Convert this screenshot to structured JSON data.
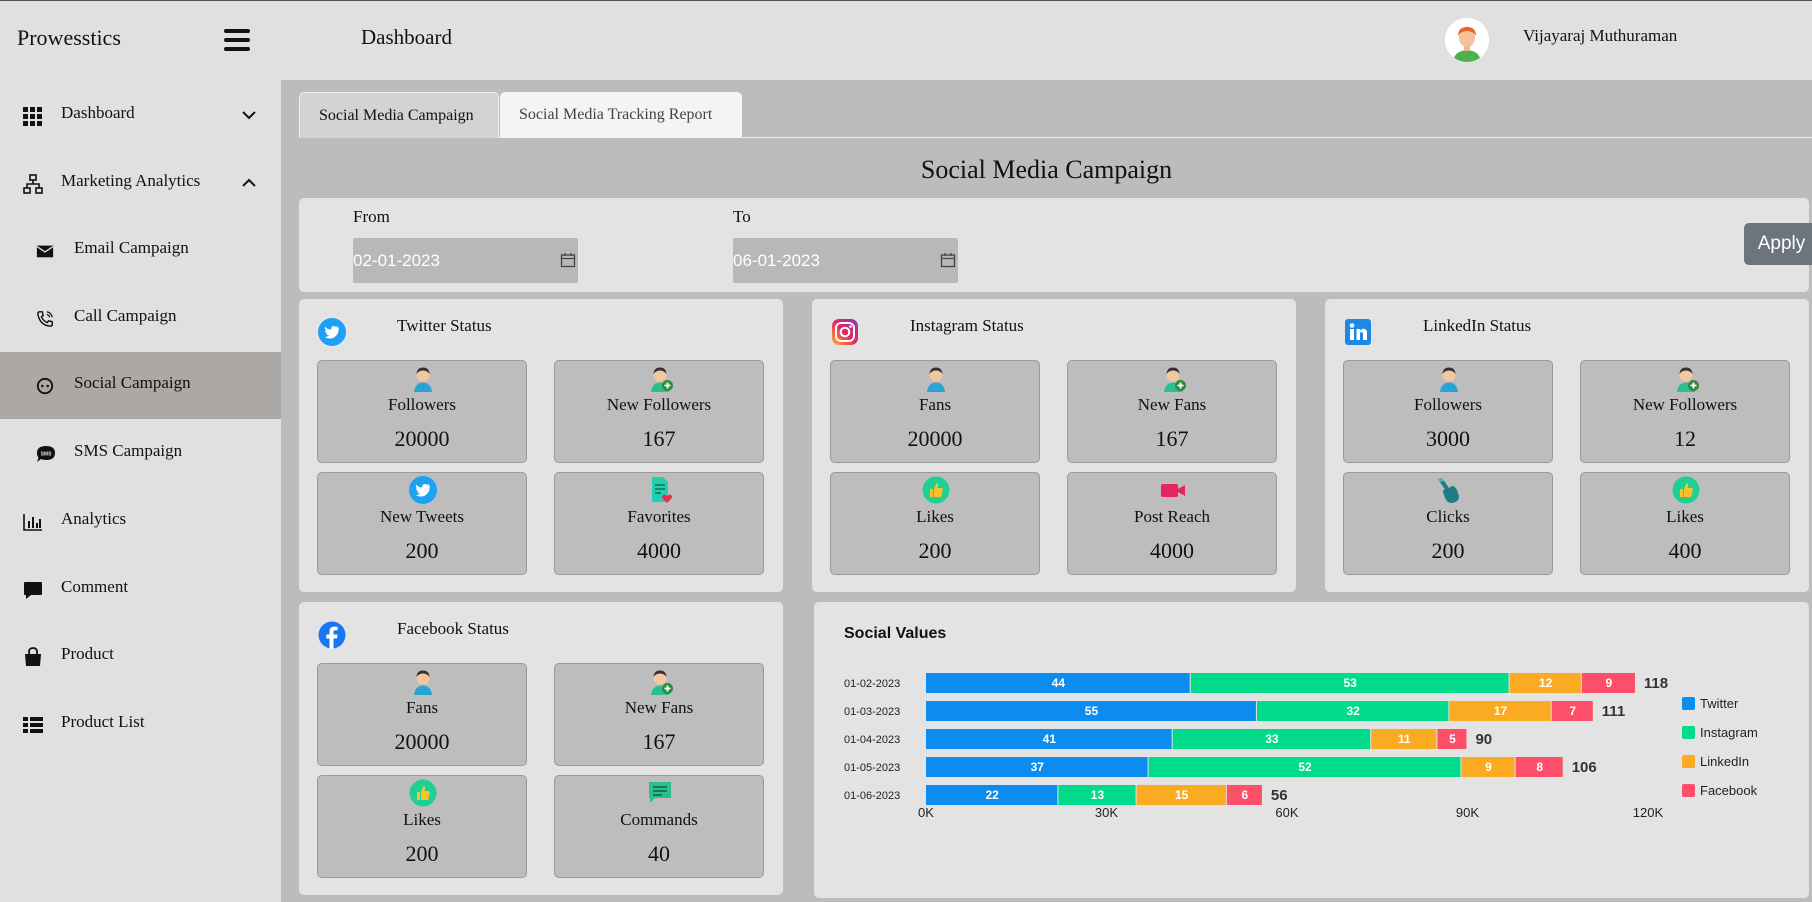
{
  "brand": "Prowesstics",
  "header": {
    "title": "Dashboard",
    "user_name": "Vijayaraj Muthuraman"
  },
  "sidebar": {
    "items": [
      {
        "label": "Dashboard",
        "icon": "grid-icon"
      },
      {
        "label": "Marketing Analytics",
        "icon": "sitemap-icon"
      },
      {
        "label": "Email Campaign",
        "icon": "envelope-icon"
      },
      {
        "label": "Call Campaign",
        "icon": "phone-icon"
      },
      {
        "label": "Social Campaign",
        "icon": "social-icon"
      },
      {
        "label": "SMS Campaign",
        "icon": "sms-icon"
      },
      {
        "label": "Analytics",
        "icon": "bar-chart-icon"
      },
      {
        "label": "Comment",
        "icon": "comment-icon"
      },
      {
        "label": "Product",
        "icon": "shopping-bag-icon"
      },
      {
        "label": "Product List",
        "icon": "list-icon"
      }
    ]
  },
  "tabs": [
    {
      "label": "Social Media Campaign"
    },
    {
      "label": "Social Media Tracking Report"
    }
  ],
  "section_title": "Social Media Campaign",
  "filter": {
    "from_label": "From",
    "from_value": "02-01-2023",
    "to_label": "To",
    "to_value": "06-01-2023",
    "apply_label": "Apply"
  },
  "twitter": {
    "title": "Twitter Status",
    "tiles": [
      {
        "label": "Followers",
        "value": "20000",
        "icon": "user-icon"
      },
      {
        "label": "New Followers",
        "value": "167",
        "icon": "user-add-icon"
      },
      {
        "label": "New Tweets",
        "value": "200",
        "icon": "twitter-icon"
      },
      {
        "label": "Favorites",
        "value": "4000",
        "icon": "favorite-doc-icon"
      }
    ]
  },
  "instagram": {
    "title": "Instagram Status",
    "tiles": [
      {
        "label": "Fans",
        "value": "20000",
        "icon": "user-icon"
      },
      {
        "label": "New Fans",
        "value": "167",
        "icon": "user-add-icon"
      },
      {
        "label": "Likes",
        "value": "200",
        "icon": "thumbs-up-icon"
      },
      {
        "label": "Post Reach",
        "value": "4000",
        "icon": "video-camera-icon"
      }
    ]
  },
  "linkedin": {
    "title": "LinkedIn Status",
    "tiles": [
      {
        "label": "Followers",
        "value": "3000",
        "icon": "user-icon"
      },
      {
        "label": "New Followers",
        "value": "12",
        "icon": "user-add-icon"
      },
      {
        "label": "Clicks",
        "value": "200",
        "icon": "click-hand-icon"
      },
      {
        "label": "Likes",
        "value": "400",
        "icon": "thumbs-up-icon"
      }
    ]
  },
  "facebook": {
    "title": "Facebook Status",
    "tiles": [
      {
        "label": "Fans",
        "value": "20000",
        "icon": "user-icon"
      },
      {
        "label": "New Fans",
        "value": "167",
        "icon": "user-add-icon"
      },
      {
        "label": "Likes",
        "value": "200",
        "icon": "thumbs-up-icon"
      },
      {
        "label": "Commands",
        "value": "40",
        "icon": "comment-icon"
      }
    ]
  },
  "colors": {
    "twitter": "#0d8cf0",
    "instagram": "#00dc8c",
    "linkedin": "#fbab21",
    "facebook": "#fd4e6a"
  },
  "chart_data": {
    "type": "bar",
    "orientation": "horizontal",
    "stacked": true,
    "title": "Social Values",
    "categories": [
      "01-02-2023",
      "01-03-2023",
      "01-04-2023",
      "01-05-2023",
      "01-06-2023"
    ],
    "series": [
      {
        "name": "Twitter",
        "values": [
          44,
          55,
          41,
          37,
          22
        ]
      },
      {
        "name": "Instagram",
        "values": [
          53,
          32,
          33,
          52,
          13
        ]
      },
      {
        "name": "LinkedIn",
        "values": [
          12,
          17,
          11,
          9,
          15
        ]
      },
      {
        "name": "Facebook",
        "values": [
          9,
          7,
          5,
          8,
          6
        ]
      }
    ],
    "totals": [
      118,
      111,
      90,
      106,
      56
    ],
    "x_ticks": [
      "0K",
      "30K",
      "60K",
      "90K",
      "120K"
    ],
    "xlim": [
      0,
      123
    ],
    "legend_position": "right",
    "grid": false
  }
}
